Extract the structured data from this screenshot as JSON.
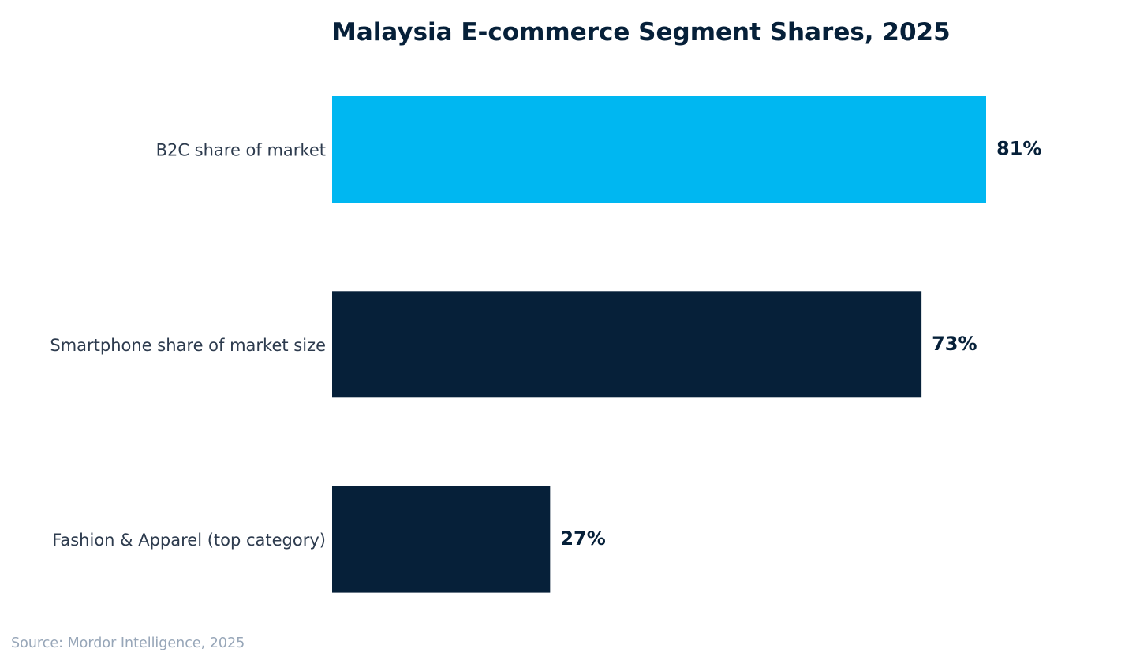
{
  "chart_data": {
    "type": "bar",
    "orientation": "horizontal",
    "title": "Malaysia E-commerce Segment Shares, 2025",
    "categories": [
      "B2C share of market",
      "Smartphone share of market size",
      "Fashion & Apparel (top category)"
    ],
    "values": [
      81,
      73,
      27
    ],
    "value_labels": [
      "81%",
      "73%",
      "27%"
    ],
    "unit": "%",
    "bar_colors": [
      "#00b7f1",
      "#062039",
      "#062039"
    ],
    "xlabel": "",
    "ylabel": "",
    "grid": false,
    "legend": "none"
  },
  "footer": {
    "source": "Source: Mordor Intelligence, 2025"
  },
  "colors": {
    "highlight": "#00b7f1",
    "dark": "#062039",
    "label_text": "#2d3b4e",
    "source_text": "#97a6b8"
  }
}
